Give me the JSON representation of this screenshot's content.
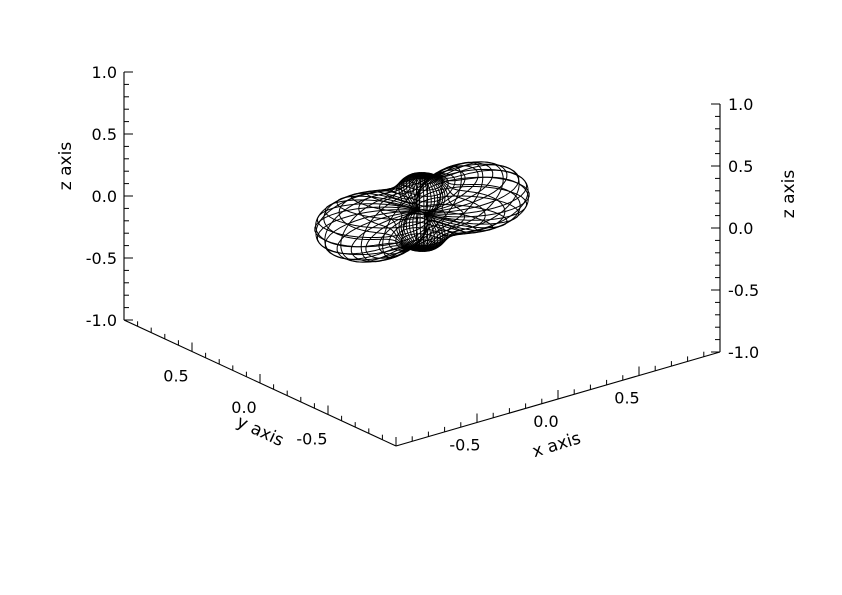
{
  "chart_data": {
    "type": "surface-3d",
    "style": "wireframe",
    "colors": {
      "line": "#000000",
      "background": "#ffffff"
    },
    "xlabel": "x axis",
    "ylabel": "y axis",
    "zlabel": "z axis",
    "xlim": [
      -1.0,
      1.0
    ],
    "ylim": [
      -1.0,
      1.0
    ],
    "zlim": [
      -1.0,
      1.0
    ],
    "x_ticks": [
      {
        "value": -0.5,
        "label": "-0.5"
      },
      {
        "value": 0.0,
        "label": "0.0"
      },
      {
        "value": 0.5,
        "label": "0.5"
      }
    ],
    "y_ticks": [
      {
        "value": 0.5,
        "label": "0.5"
      },
      {
        "value": 0.0,
        "label": "0.0"
      },
      {
        "value": -0.5,
        "label": "-0.5"
      }
    ],
    "z_ticks": [
      {
        "value": 1.0,
        "label": "1.0"
      },
      {
        "value": 0.5,
        "label": "0.5"
      },
      {
        "value": 0.0,
        "label": "0.0"
      },
      {
        "value": -0.5,
        "label": "-0.5"
      },
      {
        "value": -1.0,
        "label": "-1.0"
      }
    ],
    "surface": {
      "shape": "four-lobe angular distribution",
      "horizontal_lobe_axis": "x",
      "horizontal_lobe_extent": 0.6,
      "vertical_lobe_extent": 0.3,
      "meridian_lines": 40,
      "parallel_lines": 24
    }
  }
}
